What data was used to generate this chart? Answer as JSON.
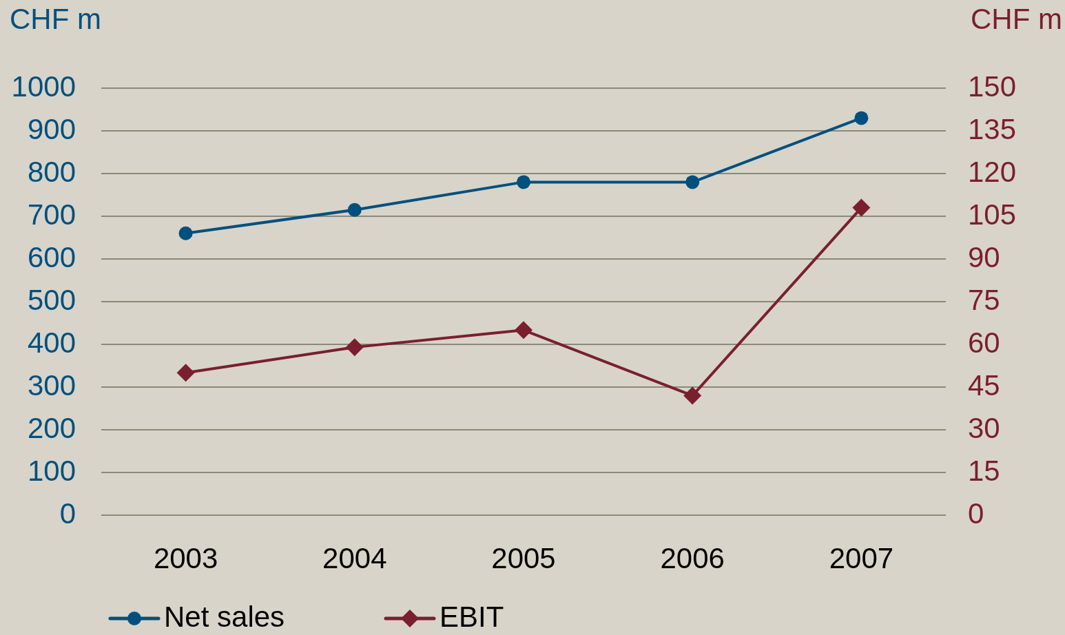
{
  "chart_data": {
    "type": "line",
    "categories": [
      "2003",
      "2004",
      "2005",
      "2006",
      "2007"
    ],
    "ylabel": "CHF m",
    "y2label": "CHF m",
    "ylim": [
      0,
      1000
    ],
    "yticks": [
      0,
      100,
      200,
      300,
      400,
      500,
      600,
      700,
      800,
      900,
      1000
    ],
    "y2lim": [
      0,
      150
    ],
    "y2ticks": [
      0,
      15,
      30,
      45,
      60,
      75,
      90,
      105,
      120,
      135,
      150
    ],
    "grid": "y",
    "legend": "bottom",
    "line_style": "solid",
    "series": [
      {
        "name": "Net sales",
        "color": "#00507f",
        "marker": "circle",
        "values": [
          660,
          715,
          780,
          780,
          930
        ]
      },
      {
        "name": "EBIT",
        "color": "#7a1f2e",
        "marker": "diamond",
        "axis": "y2",
        "values": [
          50,
          59,
          65,
          42,
          108
        ]
      }
    ]
  }
}
